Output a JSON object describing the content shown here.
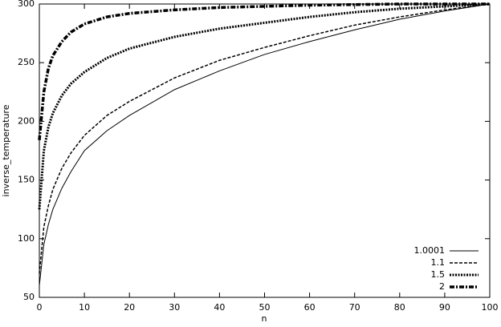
{
  "chart_data": {
    "type": "line",
    "x_label": "n",
    "y_label": "inverse_temperature",
    "x": [
      0,
      1,
      2,
      3,
      5,
      7,
      10,
      15,
      20,
      30,
      40,
      50,
      60,
      70,
      80,
      90,
      100
    ],
    "series": [
      {
        "name": "1.0001",
        "color": "#000000",
        "values": [
          60,
          95,
          112,
          125,
          143,
          157,
          175,
          192,
          205,
          227,
          243,
          257,
          268,
          278,
          287,
          294,
          300
        ]
      },
      {
        "name": "1.1",
        "color": "#000000",
        "values": [
          70,
          110,
          128,
          142,
          160,
          173,
          188,
          205,
          217,
          237,
          252,
          263,
          273,
          282,
          289,
          295,
          300
        ]
      },
      {
        "name": "1.5",
        "color": "#000000",
        "values": [
          125,
          175,
          195,
          207,
          222,
          232,
          242,
          254,
          262,
          272,
          279,
          284,
          289,
          293,
          296,
          298,
          300
        ]
      },
      {
        "name": "2",
        "color": "#000000",
        "values": [
          184,
          225,
          245,
          256,
          268,
          276,
          283,
          289,
          292,
          295,
          297,
          298,
          299,
          299.5,
          300,
          300,
          300
        ]
      }
    ],
    "xlim": [
      0,
      100
    ],
    "xticks": [
      0,
      10,
      20,
      30,
      40,
      50,
      60,
      70,
      80,
      90,
      100
    ],
    "ylim": [
      50,
      300
    ],
    "yticks": [
      50,
      100,
      150,
      200,
      250,
      300
    ],
    "grid": false,
    "legend": "lower right"
  }
}
